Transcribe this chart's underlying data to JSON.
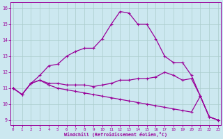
{
  "background_color": "#cce8f0",
  "grid_color": "#aacccc",
  "line_color": "#990099",
  "xlim_min": -0.3,
  "xlim_max": 23.3,
  "ylim_min": 8.7,
  "ylim_max": 16.4,
  "xticks": [
    0,
    1,
    2,
    3,
    4,
    5,
    6,
    7,
    8,
    9,
    10,
    11,
    12,
    13,
    14,
    15,
    16,
    17,
    18,
    19,
    20,
    21,
    22,
    23
  ],
  "yticks": [
    9,
    10,
    11,
    12,
    13,
    14,
    15,
    16
  ],
  "xlabel": "Windchill (Refroidissement éolien,°C)",
  "series1": {
    "x": [
      0,
      1,
      2,
      3,
      4,
      5,
      6,
      7,
      8,
      9,
      10,
      11,
      12,
      13,
      14,
      15,
      16,
      17,
      18,
      19,
      20,
      21,
      22,
      23
    ],
    "y": [
      11.0,
      10.6,
      11.3,
      11.8,
      12.4,
      12.5,
      13.0,
      13.3,
      13.5,
      13.5,
      14.1,
      15.0,
      15.8,
      15.7,
      15.0,
      15.0,
      14.1,
      13.0,
      12.6,
      12.6,
      11.8,
      10.5,
      9.2,
      9.0
    ]
  },
  "series2": {
    "x": [
      0,
      1,
      2,
      3,
      4,
      5,
      6,
      7,
      8,
      9,
      10,
      11,
      12,
      13,
      14,
      15,
      16,
      17,
      18,
      19,
      20,
      21,
      22,
      23
    ],
    "y": [
      11.0,
      10.6,
      11.3,
      11.5,
      11.3,
      11.3,
      11.2,
      11.2,
      11.2,
      11.1,
      11.2,
      11.3,
      11.5,
      11.5,
      11.6,
      11.6,
      11.7,
      12.0,
      11.8,
      11.5,
      11.6,
      10.5,
      9.2,
      9.0
    ]
  },
  "series3": {
    "x": [
      0,
      1,
      2,
      3,
      4,
      5,
      6,
      7,
      8,
      9,
      10,
      11,
      12,
      13,
      14,
      15,
      16,
      17,
      18,
      19,
      20,
      21,
      22,
      23
    ],
    "y": [
      11.0,
      10.6,
      11.3,
      11.5,
      11.2,
      11.0,
      10.9,
      10.8,
      10.7,
      10.6,
      10.5,
      10.4,
      10.3,
      10.2,
      10.1,
      10.0,
      9.9,
      9.8,
      9.7,
      9.6,
      9.5,
      10.5,
      9.2,
      9.0
    ]
  }
}
